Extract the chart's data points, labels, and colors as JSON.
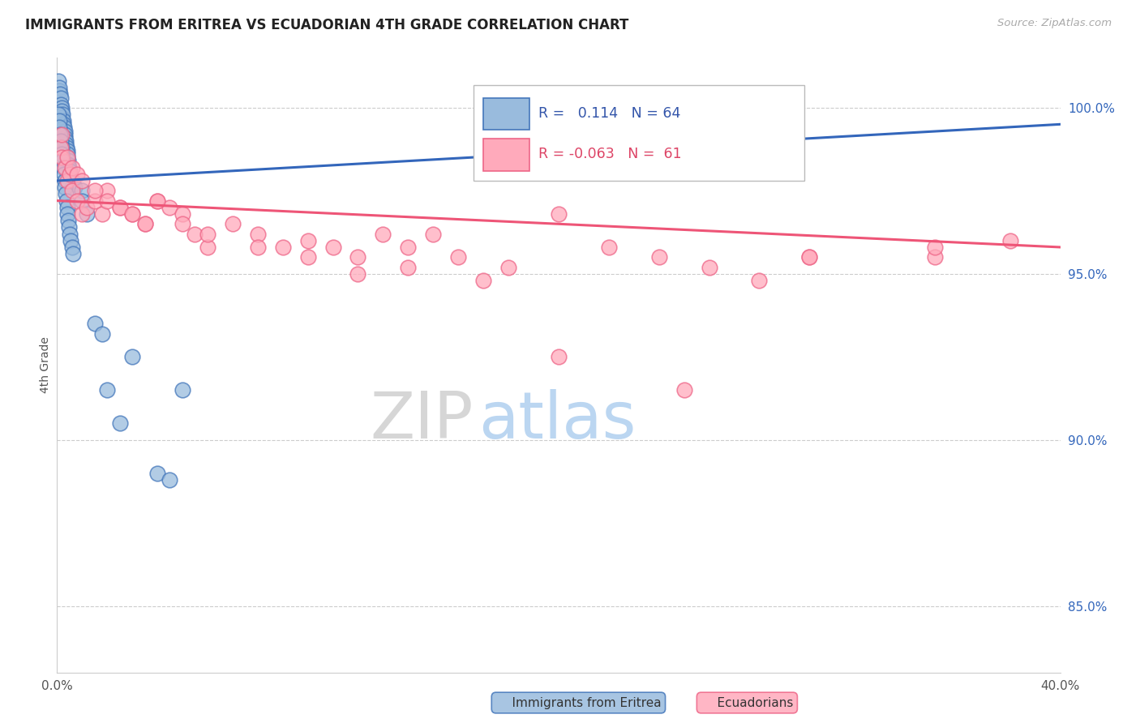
{
  "title": "IMMIGRANTS FROM ERITREA VS ECUADORIAN 4TH GRADE CORRELATION CHART",
  "source": "Source: ZipAtlas.com",
  "ylabel": "4th Grade",
  "ylabel_right_values": [
    100.0,
    95.0,
    90.0,
    85.0
  ],
  "legend_blue_r": "0.114",
  "legend_blue_n": "64",
  "legend_pink_r": "-0.063",
  "legend_pink_n": "61",
  "watermark_zip": "ZIP",
  "watermark_atlas": "atlas",
  "blue_color": "#99bbdd",
  "pink_color": "#ffaabb",
  "blue_edge_color": "#4477bb",
  "pink_edge_color": "#ee6688",
  "blue_line_color": "#3366bb",
  "pink_line_color": "#ee5577",
  "xlim": [
    0.0,
    40.0
  ],
  "ylim": [
    83.0,
    101.5
  ],
  "blue_scatter_x": [
    0.05,
    0.08,
    0.1,
    0.12,
    0.15,
    0.15,
    0.18,
    0.2,
    0.2,
    0.22,
    0.25,
    0.25,
    0.28,
    0.3,
    0.3,
    0.32,
    0.35,
    0.35,
    0.38,
    0.4,
    0.4,
    0.42,
    0.45,
    0.45,
    0.48,
    0.5,
    0.5,
    0.55,
    0.6,
    0.65,
    0.7,
    0.05,
    0.08,
    0.1,
    0.12,
    0.15,
    0.18,
    0.2,
    0.22,
    0.25,
    0.28,
    0.3,
    0.32,
    0.35,
    0.38,
    0.4,
    0.42,
    0.45,
    0.48,
    0.5,
    0.55,
    0.6,
    0.65,
    1.0,
    1.0,
    1.2,
    1.5,
    1.8,
    2.0,
    2.5,
    3.0,
    4.0,
    4.5,
    5.0
  ],
  "blue_scatter_y": [
    100.8,
    100.5,
    100.6,
    100.4,
    100.3,
    100.1,
    100.0,
    99.9,
    99.7,
    99.8,
    99.6,
    99.5,
    99.4,
    99.3,
    99.2,
    99.1,
    99.0,
    98.9,
    98.8,
    98.7,
    98.6,
    98.5,
    98.4,
    98.3,
    98.2,
    98.1,
    98.0,
    97.9,
    97.8,
    97.7,
    97.6,
    99.8,
    99.6,
    99.4,
    99.2,
    99.0,
    98.8,
    98.6,
    98.4,
    98.2,
    98.0,
    97.8,
    97.6,
    97.4,
    97.2,
    97.0,
    96.8,
    96.6,
    96.4,
    96.2,
    96.0,
    95.8,
    95.6,
    97.5,
    97.2,
    96.8,
    93.5,
    93.2,
    91.5,
    90.5,
    92.5,
    89.0,
    88.8,
    91.5
  ],
  "pink_scatter_x": [
    0.15,
    0.2,
    0.3,
    0.4,
    0.5,
    0.6,
    0.8,
    1.0,
    1.2,
    1.5,
    1.8,
    2.0,
    2.5,
    3.0,
    3.5,
    4.0,
    4.5,
    5.0,
    5.5,
    6.0,
    7.0,
    8.0,
    9.0,
    10.0,
    11.0,
    12.0,
    13.0,
    14.0,
    15.0,
    16.0,
    18.0,
    20.0,
    22.0,
    24.0,
    26.0,
    28.0,
    30.0,
    35.0,
    0.2,
    0.4,
    0.6,
    0.8,
    1.0,
    1.5,
    2.0,
    2.5,
    3.0,
    3.5,
    4.0,
    5.0,
    6.0,
    8.0,
    10.0,
    12.0,
    14.0,
    17.0,
    20.0,
    25.0,
    30.0,
    35.0,
    38.0
  ],
  "pink_scatter_y": [
    98.8,
    98.5,
    98.2,
    97.8,
    98.0,
    97.5,
    97.2,
    96.8,
    97.0,
    97.2,
    96.8,
    97.5,
    97.0,
    96.8,
    96.5,
    97.2,
    97.0,
    96.8,
    96.2,
    95.8,
    96.5,
    96.2,
    95.8,
    96.0,
    95.8,
    95.5,
    96.2,
    95.8,
    96.2,
    95.5,
    95.2,
    96.8,
    95.8,
    95.5,
    95.2,
    94.8,
    95.5,
    95.5,
    99.2,
    98.5,
    98.2,
    98.0,
    97.8,
    97.5,
    97.2,
    97.0,
    96.8,
    96.5,
    97.2,
    96.5,
    96.2,
    95.8,
    95.5,
    95.0,
    95.2,
    94.8,
    92.5,
    91.5,
    95.5,
    95.8,
    96.0
  ],
  "blue_trendline_x": [
    0.0,
    40.0
  ],
  "blue_trendline_y": [
    97.8,
    99.5
  ],
  "pink_trendline_x": [
    0.0,
    40.0
  ],
  "pink_trendline_y": [
    97.2,
    95.8
  ]
}
